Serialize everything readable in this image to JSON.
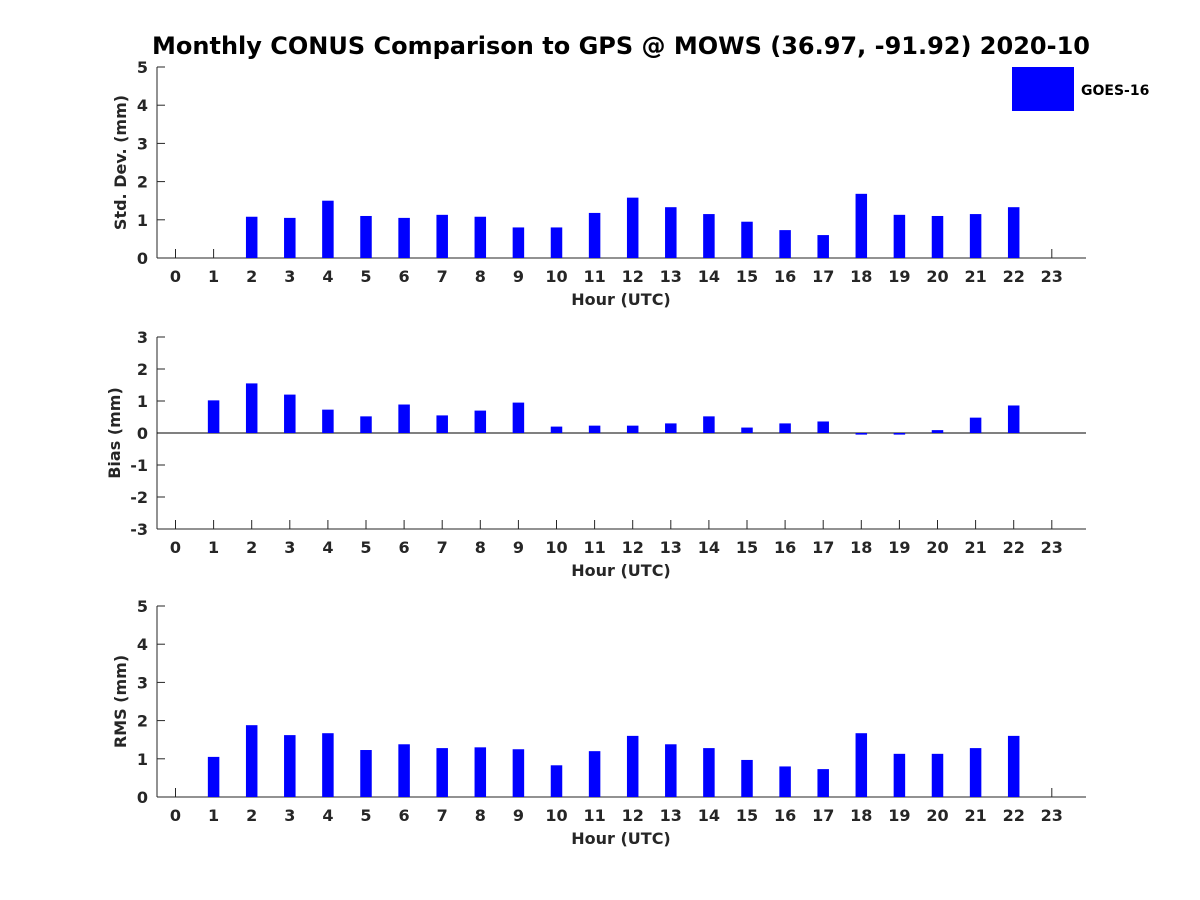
{
  "title": "Monthly CONUS Comparison to GPS @ MOWS (36.97, -91.92) 2020-10",
  "legend": {
    "label": "GOES-16",
    "color": "#0000ff"
  },
  "chart_data": [
    {
      "type": "bar",
      "name": "std-dev",
      "xlabel": "Hour (UTC)",
      "ylabel": "Std. Dev. (mm)",
      "ylim": [
        0,
        5
      ],
      "yticks": [
        "0",
        "1",
        "2",
        "3",
        "4",
        "5"
      ],
      "categories": [
        "0",
        "1",
        "2",
        "3",
        "4",
        "5",
        "6",
        "7",
        "8",
        "9",
        "10",
        "11",
        "12",
        "13",
        "14",
        "15",
        "16",
        "17",
        "18",
        "19",
        "20",
        "21",
        "22",
        "23"
      ],
      "values": [
        null,
        null,
        1.08,
        1.05,
        1.5,
        1.1,
        1.05,
        1.13,
        1.08,
        0.8,
        0.8,
        1.18,
        1.58,
        1.33,
        1.15,
        0.95,
        0.73,
        0.6,
        1.68,
        1.13,
        1.1,
        1.15,
        1.33,
        null
      ],
      "color": "#0000ff"
    },
    {
      "type": "bar",
      "name": "bias",
      "xlabel": "Hour (UTC)",
      "ylabel": "Bias (mm)",
      "ylim": [
        -3,
        3
      ],
      "yticks": [
        "-3",
        "-2",
        "-1",
        "0",
        "1",
        "2",
        "3"
      ],
      "categories": [
        "0",
        "1",
        "2",
        "3",
        "4",
        "5",
        "6",
        "7",
        "8",
        "9",
        "10",
        "11",
        "12",
        "13",
        "14",
        "15",
        "16",
        "17",
        "18",
        "19",
        "20",
        "21",
        "22",
        "23"
      ],
      "values": [
        null,
        1.02,
        1.55,
        1.2,
        0.73,
        0.52,
        0.89,
        0.55,
        0.7,
        0.95,
        0.2,
        0.23,
        0.23,
        0.3,
        0.52,
        0.17,
        0.3,
        0.36,
        -0.05,
        -0.05,
        0.09,
        0.48,
        0.86,
        null
      ],
      "zero_line": true,
      "color": "#0000ff"
    },
    {
      "type": "bar",
      "name": "rms",
      "xlabel": "Hour (UTC)",
      "ylabel": "RMS (mm)",
      "ylim": [
        0,
        5
      ],
      "yticks": [
        "0",
        "1",
        "2",
        "3",
        "4",
        "5"
      ],
      "categories": [
        "0",
        "1",
        "2",
        "3",
        "4",
        "5",
        "6",
        "7",
        "8",
        "9",
        "10",
        "11",
        "12",
        "13",
        "14",
        "15",
        "16",
        "17",
        "18",
        "19",
        "20",
        "21",
        "22",
        "23"
      ],
      "values": [
        null,
        1.05,
        1.88,
        1.62,
        1.67,
        1.23,
        1.38,
        1.28,
        1.3,
        1.25,
        0.83,
        1.2,
        1.6,
        1.38,
        1.28,
        0.97,
        0.8,
        0.73,
        1.67,
        1.13,
        1.13,
        1.28,
        1.6,
        null
      ],
      "color": "#0000ff"
    }
  ]
}
